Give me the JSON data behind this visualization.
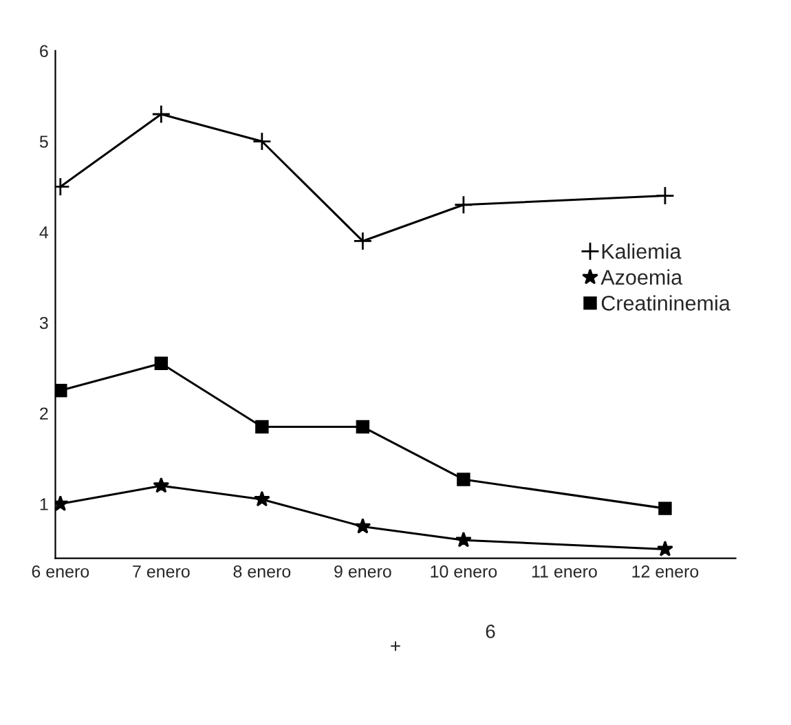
{
  "chart_data": {
    "type": "line",
    "categories": [
      "6 enero",
      "7 enero",
      "8 enero",
      "9 enero",
      "10 enero",
      "11 enero",
      "12 enero"
    ],
    "series": [
      {
        "name": "Kaliemia",
        "color": "#000000",
        "marker": "cross",
        "values": [
          4.5,
          5.3,
          5.0,
          3.9,
          4.3,
          null,
          4.4
        ]
      },
      {
        "name": "Azoemia",
        "color": "#000000",
        "marker": "star",
        "values": [
          1.0,
          1.2,
          1.05,
          0.75,
          0.6,
          null,
          0.5
        ]
      },
      {
        "name": "Creatininemia",
        "color": "#000000",
        "marker": "square",
        "values": [
          2.25,
          2.55,
          1.85,
          1.85,
          1.27,
          null,
          0.95
        ]
      }
    ],
    "ylim": [
      0.4,
      6
    ],
    "yticks": [
      1,
      2,
      3,
      4,
      5,
      6
    ],
    "grid": false,
    "legend": "right",
    "line_style": "solid",
    "annotations": [
      "+",
      "6"
    ]
  }
}
